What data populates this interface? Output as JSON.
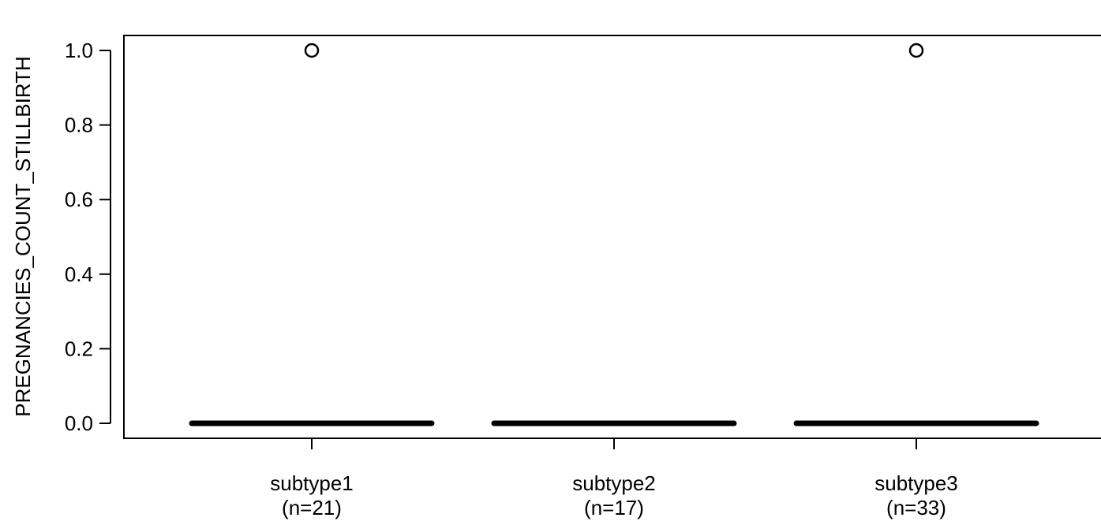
{
  "chart_data": {
    "type": "box",
    "ylabel": "PREGNANCIES_COUNT_STILLBIRTH",
    "ylim": [
      0.0,
      1.0
    ],
    "yticks": [
      {
        "value": 0.0,
        "label": "0.0"
      },
      {
        "value": 0.2,
        "label": "0.2"
      },
      {
        "value": 0.4,
        "label": "0.4"
      },
      {
        "value": 0.6,
        "label": "0.6"
      },
      {
        "value": 0.8,
        "label": "0.8"
      },
      {
        "value": 1.0,
        "label": "1.0"
      }
    ],
    "categories": [
      {
        "name": "subtype1",
        "n_label": "(n=21)",
        "q1": 0,
        "median": 0,
        "q3": 0,
        "whisker_low": 0,
        "whisker_high": 0,
        "outliers": [
          1
        ]
      },
      {
        "name": "subtype2",
        "n_label": "(n=17)",
        "q1": 0,
        "median": 0,
        "q3": 0,
        "whisker_low": 0,
        "whisker_high": 0,
        "outliers": []
      },
      {
        "name": "subtype3",
        "n_label": "(n=33)",
        "q1": 0,
        "median": 0,
        "q3": 0,
        "whisker_low": 0,
        "whisker_high": 0,
        "outliers": [
          1
        ]
      }
    ],
    "grid": false,
    "legend": "none"
  }
}
